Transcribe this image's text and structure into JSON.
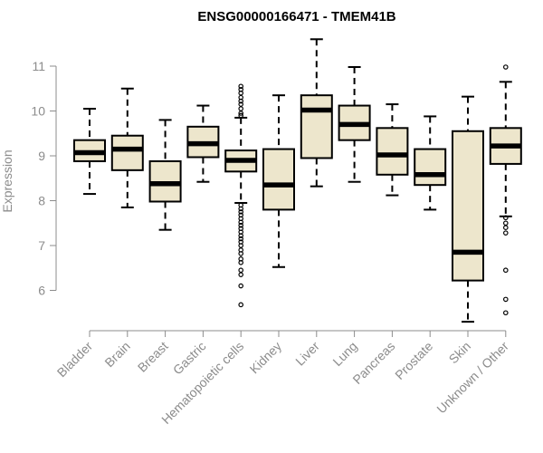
{
  "chart_data": {
    "type": "boxplot",
    "title": "ENSG00000166471 - TMEM41B",
    "xlabel": "",
    "ylabel": "Expression",
    "ylim": [
      5.1,
      12.1
    ],
    "yticks": [
      6,
      7,
      8,
      9,
      10,
      11
    ],
    "box_fill": "#ede6cc",
    "categories": [
      "Bladder",
      "Brain",
      "Breast",
      "Gastric",
      "Hematopoietic cells",
      "Kidney",
      "Liver",
      "Lung",
      "Pancreas",
      "Prostate",
      "Skin",
      "Unknown / Other"
    ],
    "series": [
      {
        "name": "Bladder",
        "whisker_low": 8.15,
        "q1": 8.88,
        "median": 9.07,
        "q3": 9.35,
        "whisker_high": 10.05,
        "outliers": []
      },
      {
        "name": "Brain",
        "whisker_low": 7.85,
        "q1": 8.68,
        "median": 9.15,
        "q3": 9.45,
        "whisker_high": 10.5,
        "outliers": []
      },
      {
        "name": "Breast",
        "whisker_low": 7.35,
        "q1": 7.98,
        "median": 8.38,
        "q3": 8.88,
        "whisker_high": 9.8,
        "outliers": []
      },
      {
        "name": "Gastric",
        "whisker_low": 8.42,
        "q1": 8.97,
        "median": 9.27,
        "q3": 9.65,
        "whisker_high": 10.12,
        "outliers": []
      },
      {
        "name": "Hematopoietic cells",
        "whisker_low": 7.95,
        "q1": 8.65,
        "median": 8.9,
        "q3": 9.12,
        "whisker_high": 9.85,
        "outliers": [
          10.55,
          10.48,
          10.4,
          10.3,
          10.22,
          10.15,
          10.05,
          9.95,
          9.9,
          7.9,
          7.82,
          7.75,
          7.68,
          7.6,
          7.52,
          7.45,
          7.38,
          7.3,
          7.22,
          7.15,
          7.08,
          7.0,
          6.9,
          6.82,
          6.7,
          6.62,
          6.45,
          6.35,
          6.1,
          5.68
        ]
      },
      {
        "name": "Kidney",
        "whisker_low": 6.52,
        "q1": 7.8,
        "median": 8.35,
        "q3": 9.15,
        "whisker_high": 10.35,
        "outliers": []
      },
      {
        "name": "Liver",
        "whisker_low": 8.32,
        "q1": 8.95,
        "median": 10.02,
        "q3": 10.35,
        "whisker_high": 11.6,
        "outliers": []
      },
      {
        "name": "Lung",
        "whisker_low": 8.42,
        "q1": 9.35,
        "median": 9.7,
        "q3": 10.12,
        "whisker_high": 10.98,
        "outliers": []
      },
      {
        "name": "Pancreas",
        "whisker_low": 8.12,
        "q1": 8.58,
        "median": 9.02,
        "q3": 9.62,
        "whisker_high": 10.15,
        "outliers": []
      },
      {
        "name": "Prostate",
        "whisker_low": 7.8,
        "q1": 8.35,
        "median": 8.58,
        "q3": 9.15,
        "whisker_high": 9.88,
        "outliers": []
      },
      {
        "name": "Skin",
        "whisker_low": 5.3,
        "q1": 6.22,
        "median": 6.85,
        "q3": 9.55,
        "whisker_high": 10.32,
        "outliers": []
      },
      {
        "name": "Unknown / Other",
        "whisker_low": 7.65,
        "q1": 8.82,
        "median": 9.22,
        "q3": 9.62,
        "whisker_high": 10.65,
        "outliers": [
          10.98,
          7.62,
          7.5,
          7.4,
          7.28,
          6.45,
          5.8,
          5.5
        ]
      }
    ]
  }
}
